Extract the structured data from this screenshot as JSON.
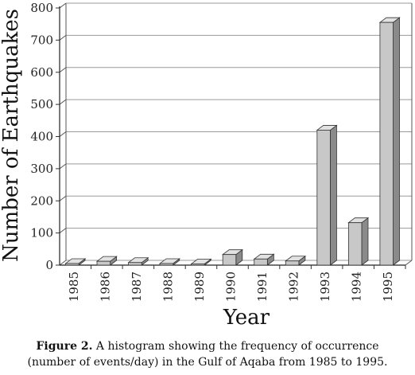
{
  "chart_data": {
    "type": "bar",
    "style": "3d-columns",
    "categories": [
      "1985",
      "1986",
      "1987",
      "1988",
      "1989",
      "1990",
      "1991",
      "1992",
      "1993",
      "1994",
      "1995"
    ],
    "values": [
      5,
      12,
      8,
      5,
      4,
      33,
      19,
      13,
      420,
      132,
      755
    ],
    "xlabel": "Year",
    "ylabel": "Number of Earthquakes",
    "ylim": [
      0,
      800
    ],
    "yticks": [
      0,
      100,
      200,
      300,
      400,
      500,
      600,
      700,
      800
    ],
    "grid": true,
    "colors": {
      "bar_front": "#c8c8c8",
      "bar_top": "#e2e2e2",
      "bar_side": "#8a8a8a",
      "grid": "#9a9a9a",
      "wall": "#ffffff"
    }
  },
  "caption": {
    "label": "Figure 2.",
    "line1": " A histogram showing the frequency of occurrence",
    "line2": "(number of events/day) in the Gulf of Aqaba from 1985 to 1995."
  }
}
